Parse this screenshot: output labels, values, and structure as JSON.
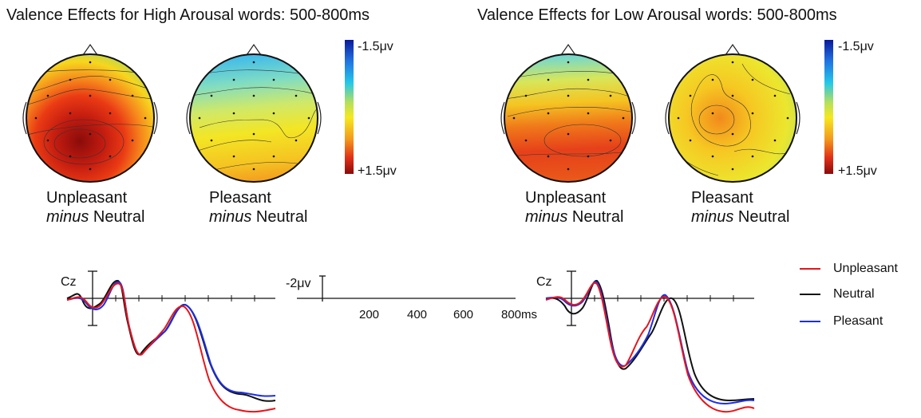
{
  "titles": {
    "high": "Valence Effects for High Arousal words: 500-800ms",
    "low": "Valence Effects for Low Arousal words: 500-800ms"
  },
  "colorbar": {
    "top_label": "-1.5μv",
    "bottom_label": "+1.5μv",
    "colors": [
      "#0a1a9a",
      "#1f6fe0",
      "#25c8e8",
      "#b8e05a",
      "#f6e81e",
      "#f49a1c",
      "#e03018",
      "#8a0a0a"
    ]
  },
  "captions": {
    "high_unpleasant": {
      "l1": "Unpleasant",
      "l2a": "minus",
      "l2b": " Neutral"
    },
    "high_pleasant": {
      "l1": "Pleasant",
      "l2a": "minus",
      "l2b": " Neutral"
    },
    "low_unpleasant": {
      "l1": "Unpleasant",
      "l2a": "minus",
      "l2b": " Neutral"
    },
    "low_pleasant": {
      "l1": "Pleasant",
      "l2a": "minus",
      "l2b": " Neutral"
    }
  },
  "erp": {
    "electrode_left": "Cz",
    "electrode_right": "Cz",
    "scale_label": "-2μv",
    "time_ticks": [
      "200",
      "400",
      "600",
      "800ms"
    ],
    "legend": [
      {
        "name": "Unpleasant",
        "color": "#e8141a"
      },
      {
        "name": "Neutral",
        "color": "#111111"
      },
      {
        "name": "Pleasant",
        "color": "#1c2ee6"
      }
    ]
  }
}
